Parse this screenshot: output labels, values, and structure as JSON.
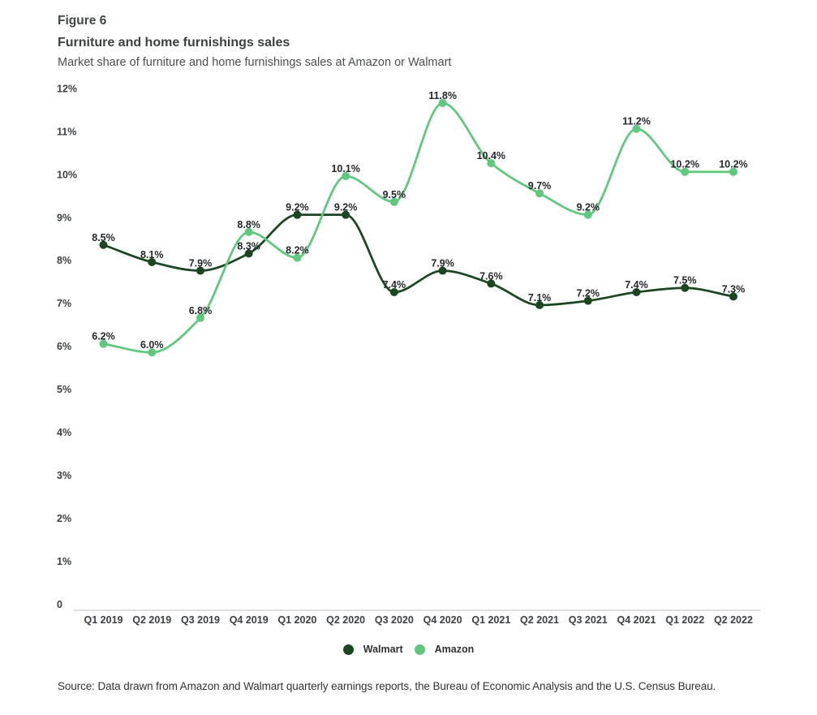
{
  "figure_label": "Figure 6",
  "title": "Furniture and home furnishings sales",
  "subtitle": "Market share of furniture and home furnishings sales at Amazon or Walmart",
  "source": "Source: Data drawn from Amazon and Walmart quarterly earnings reports, the Bureau of Economic Analysis and the U.S. Census Bureau.",
  "legend": [
    {
      "name": "Walmart",
      "color": "#1a4720"
    },
    {
      "name": "Amazon",
      "color": "#5ec97c"
    }
  ],
  "chart_data": {
    "type": "line",
    "categories": [
      "Q1 2019",
      "Q2 2019",
      "Q3 2019",
      "Q4 2019",
      "Q1 2020",
      "Q2 2020",
      "Q3 2020",
      "Q4 2020",
      "Q1 2021",
      "Q2 2021",
      "Q3 2021",
      "Q4 2021",
      "Q1 2022",
      "Q2 2022"
    ],
    "series": [
      {
        "name": "Walmart",
        "color": "#1a4720",
        "values": [
          8.5,
          8.1,
          7.9,
          8.3,
          9.2,
          9.2,
          7.4,
          7.9,
          7.6,
          7.1,
          7.2,
          7.4,
          7.5,
          7.3
        ]
      },
      {
        "name": "Amazon",
        "color": "#5ec97c",
        "values": [
          6.2,
          6.0,
          6.8,
          8.8,
          8.2,
          10.1,
          9.5,
          11.8,
          10.4,
          9.7,
          9.2,
          11.2,
          10.2,
          10.2
        ]
      }
    ],
    "value_label_format": "{v}%",
    "yticks": [
      {
        "value": 12,
        "label": "12%"
      },
      {
        "value": 11,
        "label": "11%"
      },
      {
        "value": 10,
        "label": "10%"
      },
      {
        "value": 9,
        "label": "9%"
      },
      {
        "value": 8,
        "label": "8%"
      },
      {
        "value": 7,
        "label": "7%"
      },
      {
        "value": 6,
        "label": "6%"
      },
      {
        "value": 5,
        "label": "5%"
      },
      {
        "value": 4,
        "label": "4%"
      },
      {
        "value": 3,
        "label": "3%"
      },
      {
        "value": 2,
        "label": "2%"
      },
      {
        "value": 1,
        "label": "1%"
      },
      {
        "value": 0,
        "label": "0"
      }
    ],
    "ylim": [
      0,
      12
    ],
    "grid": false,
    "legend_position": "bottom",
    "axis_color": "#cccccc"
  }
}
